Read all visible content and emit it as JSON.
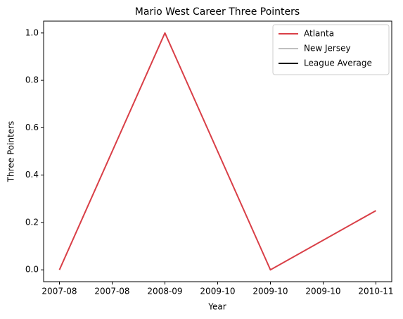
{
  "chart_data": {
    "type": "line",
    "title": "Mario West Career Three Pointers",
    "xlabel": "Year",
    "ylabel": "Three Pointers",
    "x": [
      0,
      1,
      2,
      3
    ],
    "series": [
      {
        "name": "Atlanta",
        "color": "#d93f47",
        "values": [
          0,
          1,
          0,
          0.25
        ]
      },
      {
        "name": "New Jersey",
        "color": "#bfbfbf",
        "values": [
          null,
          null,
          null,
          null
        ]
      },
      {
        "name": "League Average",
        "color": "#000000",
        "values": [
          null,
          null,
          null,
          null
        ]
      }
    ],
    "xlim": [
      -0.15,
      3.15
    ],
    "xticks": [
      {
        "value": 0,
        "label": "2007-08"
      },
      {
        "value": 0.5,
        "label": "2007-08"
      },
      {
        "value": 1,
        "label": "2008-09"
      },
      {
        "value": 1.5,
        "label": "2009-10"
      },
      {
        "value": 2,
        "label": "2009-10"
      },
      {
        "value": 2.5,
        "label": "2009-10"
      },
      {
        "value": 3,
        "label": "2010-11"
      }
    ],
    "ylim": [
      -0.05,
      1.05
    ],
    "yticks": [
      {
        "value": 0,
        "label": "0.0"
      },
      0.2,
      0.4,
      0.6,
      0.8,
      {
        "value": 1,
        "label": "1.0"
      }
    ],
    "legend": "upper right"
  }
}
